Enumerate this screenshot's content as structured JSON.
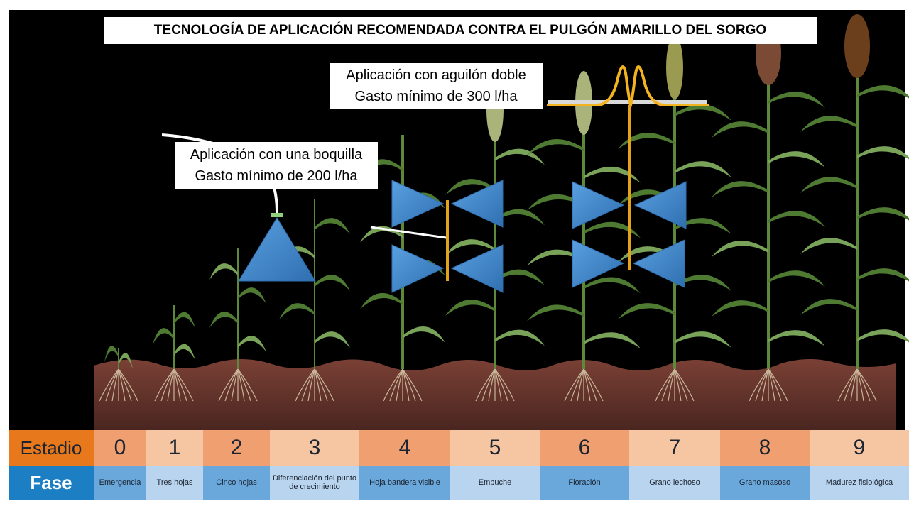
{
  "title": "TECNOLOGÍA DE APLICACIÓN RECOMENDADA CONTRA EL PULGÓN AMARILLO DEL SORGO",
  "callouts": {
    "double_boom": {
      "line1": "Aplicación con aguilón doble",
      "line2": "Gasto mínimo de 300 l/ha"
    },
    "single_nozzle": {
      "line1": "Aplicación con una boquilla",
      "line2": "Gasto mínimo de 200 l/ha"
    }
  },
  "table": {
    "stage_header": "Estadio",
    "phase_header": "Fase",
    "stages": [
      {
        "number": "0",
        "phase": "Emergencia"
      },
      {
        "number": "1",
        "phase": "Tres hojas"
      },
      {
        "number": "2",
        "phase": "Cinco hojas"
      },
      {
        "number": "3",
        "phase": "Diferenciación del punto de crecimiento"
      },
      {
        "number": "4",
        "phase": "Hoja bandera visible"
      },
      {
        "number": "5",
        "phase": "Embuche"
      },
      {
        "number": "6",
        "phase": "Floración"
      },
      {
        "number": "7",
        "phase": "Grano lechoso"
      },
      {
        "number": "8",
        "phase": "Grano masoso"
      },
      {
        "number": "9",
        "phase": "Madurez fisiológica"
      }
    ]
  },
  "colors": {
    "background": "#000000",
    "soil": "#6e3a30",
    "leaf": "#5f8a3c",
    "nozzle_spray": "#3a84c9",
    "boom": "#e2a21a",
    "stage_header": "#e8781c",
    "phase_header": "#1c7fc4",
    "stage_cells_dark": "#f0a070",
    "stage_cells_light": "#f6c6a2",
    "phase_cells_dark": "#6aa8dc",
    "phase_cells_light": "#b9d4ef"
  }
}
